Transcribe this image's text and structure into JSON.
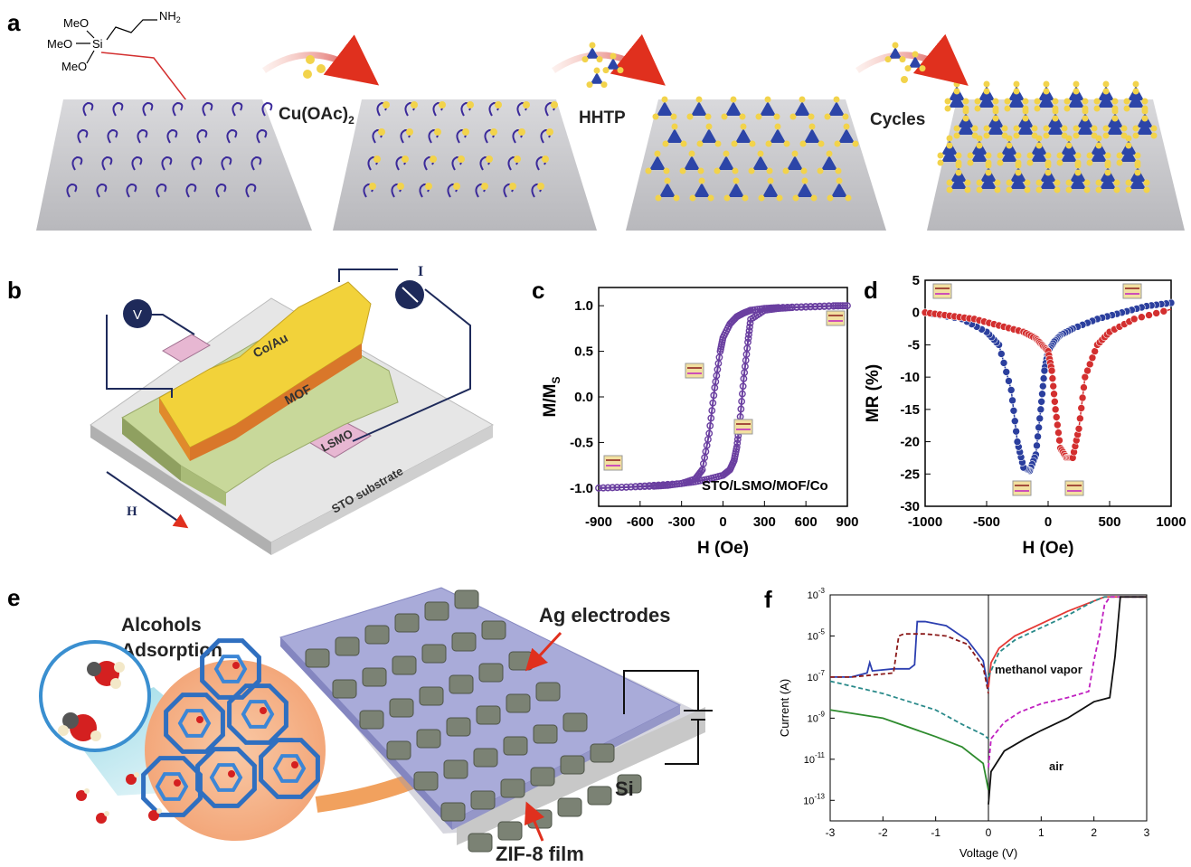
{
  "panels": {
    "a": {
      "letter": "a",
      "molecule": {
        "meo1": "MeO",
        "meo2": "MeO",
        "meo3": "MeO",
        "si": "Si",
        "nh2": "NH",
        "nh2_sub": "2"
      },
      "step1": "Cu(OAc)",
      "step1_sub": "2",
      "step2": "HHTP",
      "step3": "Cycles"
    },
    "b": {
      "letter": "b",
      "v_label": "V",
      "i_label": "I",
      "coau": "Co/Au",
      "mof": "MOF",
      "lsmo": "LSMO",
      "substrate": "STO substrate",
      "h_label": "H"
    },
    "c": {
      "letter": "c",
      "annotation": "STO/LSMO/MOF/Co"
    },
    "d": {
      "letter": "d"
    },
    "e": {
      "letter": "e",
      "alcohols1": "Alcohols",
      "alcohols2": "Adsorption",
      "ag": "Ag electrodes",
      "si": "Si",
      "zif": "ZIF-8 film"
    },
    "f": {
      "letter": "f",
      "methanol": "methanol vapor",
      "air": "air"
    }
  },
  "chart_data": [
    {
      "type": "line",
      "panel": "c",
      "xlabel": "H (Oe)",
      "ylabel": "M/M",
      "ylabel_sub": "S",
      "xlim": [
        -900,
        900
      ],
      "ylim": [
        -1.2,
        1.2
      ],
      "xticks": [
        "-900",
        "-600",
        "-300",
        "0",
        "300",
        "600",
        "900"
      ],
      "yticks": [
        "-1.0",
        "-0.5",
        "0.0",
        "0.5",
        "1.0"
      ],
      "series": [
        {
          "color": "#6a3fa0",
          "x": [
            -900,
            -700,
            -500,
            -400,
            -300,
            -200,
            -150,
            -100,
            -60,
            -20,
            0,
            50,
            100,
            150,
            200,
            300,
            400,
            600,
            800,
            900
          ],
          "y": [
            -1.0,
            -0.99,
            -0.98,
            -0.97,
            -0.95,
            -0.9,
            -0.8,
            -0.4,
            0.1,
            0.5,
            0.65,
            0.8,
            0.88,
            0.92,
            0.95,
            0.97,
            0.98,
            0.99,
            1.0,
            1.0
          ]
        },
        {
          "color": "#6a3fa0",
          "x": [
            900,
            700,
            500,
            400,
            300,
            200,
            180,
            150,
            120,
            100,
            80,
            50,
            0,
            -100,
            -200,
            -300,
            -500,
            -700,
            -900
          ],
          "y": [
            1.0,
            0.99,
            0.98,
            0.97,
            0.95,
            0.85,
            0.6,
            0.2,
            -0.3,
            -0.55,
            -0.7,
            -0.8,
            -0.86,
            -0.9,
            -0.93,
            -0.95,
            -0.97,
            -0.99,
            -1.0
          ]
        }
      ]
    },
    {
      "type": "line",
      "panel": "d",
      "xlabel": "H (Oe)",
      "ylabel": "MR (%)",
      "xlim": [
        -1000,
        1000
      ],
      "ylim": [
        -30,
        5
      ],
      "xticks": [
        "-1000",
        "-500",
        "0",
        "500",
        "1000"
      ],
      "yticks": [
        "5",
        "0",
        "-5",
        "-10",
        "-15",
        "-20",
        "-25",
        "-30"
      ],
      "series": [
        {
          "color": "#2b3f9e",
          "x": [
            1000,
            800,
            600,
            400,
            200,
            100,
            50,
            0,
            -30,
            -60,
            -100,
            -150,
            -200,
            -250,
            -300,
            -400,
            -500,
            -700,
            -1000
          ],
          "y": [
            1.5,
            1,
            0,
            -1,
            -2.5,
            -3.5,
            -4.5,
            -6,
            -9,
            -15,
            -22,
            -24.5,
            -24,
            -20,
            -12,
            -5,
            -3,
            -1,
            0
          ]
        },
        {
          "color": "#d32f2f",
          "x": [
            -1000,
            -800,
            -600,
            -400,
            -200,
            -100,
            -50,
            0,
            30,
            60,
            100,
            150,
            200,
            250,
            300,
            400,
            500,
            700,
            1000
          ],
          "y": [
            0,
            -0.5,
            -1,
            -2,
            -3,
            -4,
            -5,
            -6,
            -9,
            -15,
            -21,
            -22.5,
            -22.5,
            -18,
            -10,
            -5,
            -3,
            -1,
            0.5
          ]
        }
      ]
    },
    {
      "type": "line",
      "panel": "f",
      "xlabel": "Voltage (V)",
      "ylabel": "Current (A)",
      "log_y": true,
      "xlim": [
        -3,
        3
      ],
      "ylim_exp": [
        -14,
        -3
      ],
      "xticks": [
        "-3",
        "-2",
        "-1",
        "0",
        "1",
        "2",
        "3"
      ],
      "yticks_exp": [
        "-3",
        "-5",
        "-7",
        "-9",
        "-11",
        "-13"
      ],
      "series": [
        {
          "color": "#2c3fb0",
          "dash": false,
          "x": [
            -3,
            -2.6,
            -2.3,
            -2.25,
            -2.2,
            -1.8,
            -1.7,
            -1.5,
            -1.4,
            -1.35,
            -1.2,
            -0.8,
            -0.4,
            -0.1,
            0
          ],
          "y": [
            -7.0,
            -7.0,
            -6.8,
            -6.3,
            -6.7,
            -6.6,
            -6.6,
            -6.6,
            -6.4,
            -4.3,
            -4.3,
            -4.5,
            -5.2,
            -6.2,
            -7.6
          ]
        },
        {
          "color": "#8b1a1a",
          "dash": true,
          "x": [
            -3,
            -2.6,
            -1.8,
            -1.7,
            -1.6,
            -1.3,
            -1.2,
            -0.8,
            -0.4,
            -0.1,
            0
          ],
          "y": [
            -7.0,
            -7.0,
            -6.8,
            -5.0,
            -4.9,
            -4.9,
            -4.9,
            -5.0,
            -5.4,
            -6.5,
            -7.8
          ]
        },
        {
          "color": "#2a8a8a",
          "dash": true,
          "x": [
            -3,
            -2,
            -1,
            -0.5,
            -0.1,
            0
          ],
          "y": [
            -7.2,
            -7.8,
            -8.6,
            -9.3,
            -9.8,
            -10.0
          ]
        },
        {
          "color": "#2e8b2e",
          "dash": false,
          "x": [
            -3,
            -2,
            -1,
            -0.5,
            -0.1,
            0
          ],
          "y": [
            -8.6,
            -9.0,
            -9.9,
            -10.4,
            -11.2,
            -12.5
          ]
        },
        {
          "color": "#e53935",
          "dash": false,
          "x": [
            0,
            0.05,
            0.2,
            0.5,
            1,
            1.5,
            2,
            2.2,
            2.5,
            3
          ],
          "y": [
            -7.5,
            -6.3,
            -5.6,
            -5.0,
            -4.4,
            -3.8,
            -3.3,
            -3.1,
            -3.1,
            -3.1
          ]
        },
        {
          "color": "#2a8a8a",
          "dash": true,
          "x": [
            0,
            0.2,
            0.5,
            1,
            1.5,
            2,
            2.2,
            2.5,
            3
          ],
          "y": [
            -7.0,
            -5.8,
            -5.2,
            -4.6,
            -4.0,
            -3.3,
            -3.1,
            -3.1,
            -3.1
          ]
        },
        {
          "color": "#c020c0",
          "dash": true,
          "x": [
            0,
            0.05,
            0.3,
            0.6,
            1,
            1.5,
            1.9,
            2.0,
            2.1,
            2.2,
            2.3,
            3
          ],
          "y": [
            -11.4,
            -10.0,
            -9.2,
            -8.7,
            -8.3,
            -8.0,
            -7.7,
            -6.2,
            -5.0,
            -3.5,
            -3.1,
            -3.1
          ]
        },
        {
          "color": "#111111",
          "dash": false,
          "x": [
            0,
            0.05,
            0.3,
            0.7,
            1,
            1.5,
            2,
            2.3,
            2.4,
            2.5,
            3
          ],
          "y": [
            -13.2,
            -11.6,
            -10.6,
            -10.0,
            -9.6,
            -9.0,
            -8.2,
            -8.0,
            -6.0,
            -3.1,
            -3.1
          ]
        }
      ]
    }
  ]
}
